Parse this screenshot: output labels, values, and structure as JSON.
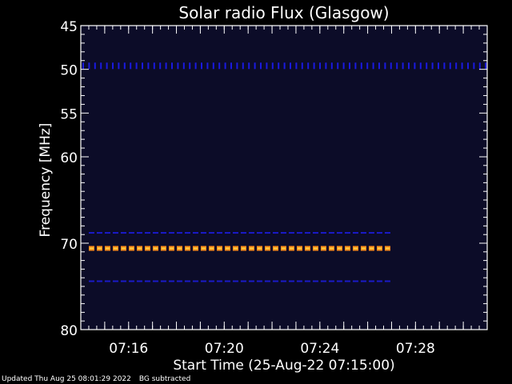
{
  "chart_data": {
    "type": "heatmap",
    "title": "Solar radio Flux (Glasgow)",
    "xlabel": "Start Time (25-Aug-22 07:15:00)",
    "ylabel": "Frequency [MHz]",
    "x_range_minutes": [
      14.0,
      31.0
    ],
    "y_range": [
      45,
      80
    ],
    "y_ticks": [
      45,
      50,
      55,
      60,
      70,
      80
    ],
    "x_ticks": [
      {
        "minute": 16,
        "label": "07:16"
      },
      {
        "minute": 20,
        "label": "07:20"
      },
      {
        "minute": 24,
        "label": "07:24"
      },
      {
        "minute": 28,
        "label": "07:28"
      }
    ],
    "background_color": "#0c0c28",
    "emission_bands": [
      {
        "freq": 49.6,
        "t_start": 14.0,
        "t_end": 31.0,
        "color": "#1a1ae0",
        "style": "ticks"
      },
      {
        "freq": 68.8,
        "t_start": 14.2,
        "t_end": 27.0,
        "color": "#1a1ac8",
        "style": "dashes"
      },
      {
        "freq": 70.6,
        "t_start": 14.2,
        "t_end": 27.0,
        "color": "#ff8c1a",
        "style": "bold-dashes"
      },
      {
        "freq": 74.4,
        "t_start": 14.2,
        "t_end": 27.0,
        "color": "#1a1ac8",
        "style": "dashes"
      }
    ],
    "grid": false
  },
  "footer": {
    "updated": "Updated Thu Aug 25 08:01:29 2022",
    "note": "BG subtracted"
  }
}
